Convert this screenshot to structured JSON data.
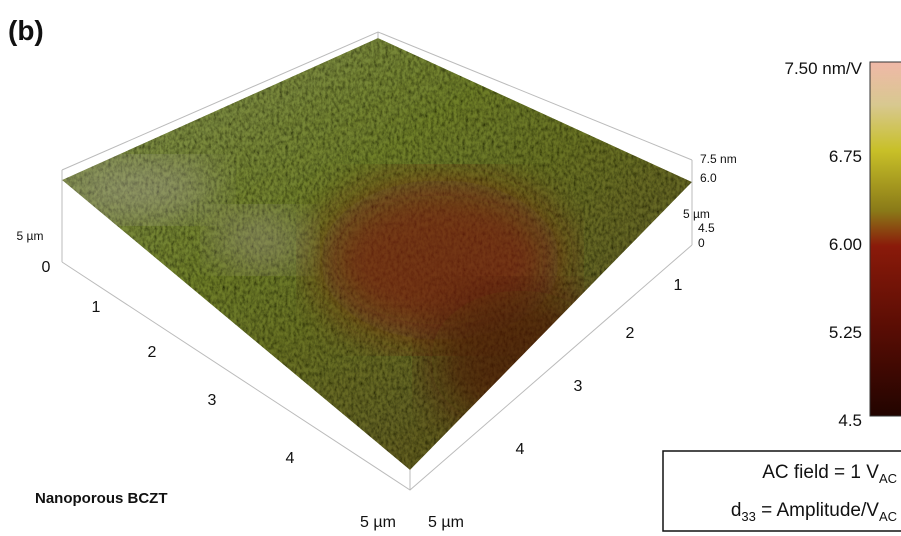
{
  "panel_label": "(b)",
  "sample_label": "Nanoporous BCZT",
  "axes": {
    "left_ticks": [
      "0",
      "1",
      "2",
      "3",
      "4",
      "5 µm"
    ],
    "right_ticks": [
      "1",
      "2",
      "3",
      "4",
      "5 µm"
    ],
    "back_label": "5 µm",
    "right_edge_labels": [
      "7.5 nm",
      "6.0",
      "5 µm",
      "4.5",
      "0"
    ]
  },
  "colorbar": {
    "ticks": [
      "7.50 nm/V",
      "6.75",
      "6.00",
      "5.25",
      "4.5"
    ]
  },
  "annotation": {
    "lines": [
      [
        {
          "text": "AC field = 1 V"
        },
        {
          "text": "AC",
          "sub": true
        }
      ],
      [
        {
          "text": "d"
        },
        {
          "text": "33",
          "sub": true
        },
        {
          "text": " = Amplitude/V"
        },
        {
          "text": "AC",
          "sub": true
        }
      ]
    ]
  }
}
